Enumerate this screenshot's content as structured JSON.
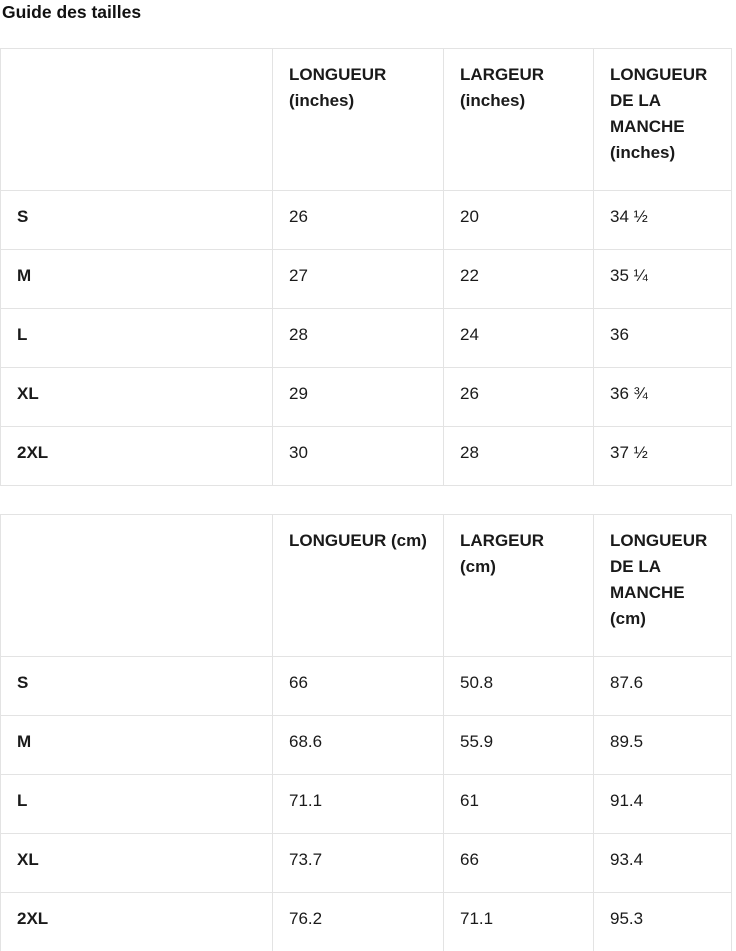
{
  "title": "Guide des tailles",
  "colors": {
    "border": "#e3e3e3",
    "text": "#1a1a1a",
    "background": "#ffffff"
  },
  "tables": {
    "inches": {
      "headers": [
        "",
        "LONGUEUR (inches)",
        "LARGEUR (inches)",
        "LONGUEUR DE LA MANCHE (inches)"
      ],
      "rows": [
        {
          "size": "S",
          "longueur": "26",
          "largeur": "20",
          "manche": "34 ½"
        },
        {
          "size": "M",
          "longueur": "27",
          "largeur": "22",
          "manche": "35 ¼"
        },
        {
          "size": "L",
          "longueur": "28",
          "largeur": "24",
          "manche": "36"
        },
        {
          "size": "XL",
          "longueur": "29",
          "largeur": "26",
          "manche": "36 ¾"
        },
        {
          "size": "2XL",
          "longueur": "30",
          "largeur": "28",
          "manche": "37 ½"
        }
      ]
    },
    "cm": {
      "headers": [
        "",
        "LONGUEUR (cm)",
        "LARGEUR (cm)",
        "LONGUEUR DE LA MANCHE (cm)"
      ],
      "rows": [
        {
          "size": "S",
          "longueur": "66",
          "largeur": "50.8",
          "manche": "87.6"
        },
        {
          "size": "M",
          "longueur": "68.6",
          "largeur": "55.9",
          "manche": "89.5"
        },
        {
          "size": "L",
          "longueur": "71.1",
          "largeur": "61",
          "manche": "91.4"
        },
        {
          "size": "XL",
          "longueur": "73.7",
          "largeur": "66",
          "manche": "93.4"
        },
        {
          "size": "2XL",
          "longueur": "76.2",
          "largeur": "71.1",
          "manche": "95.3"
        }
      ]
    }
  }
}
